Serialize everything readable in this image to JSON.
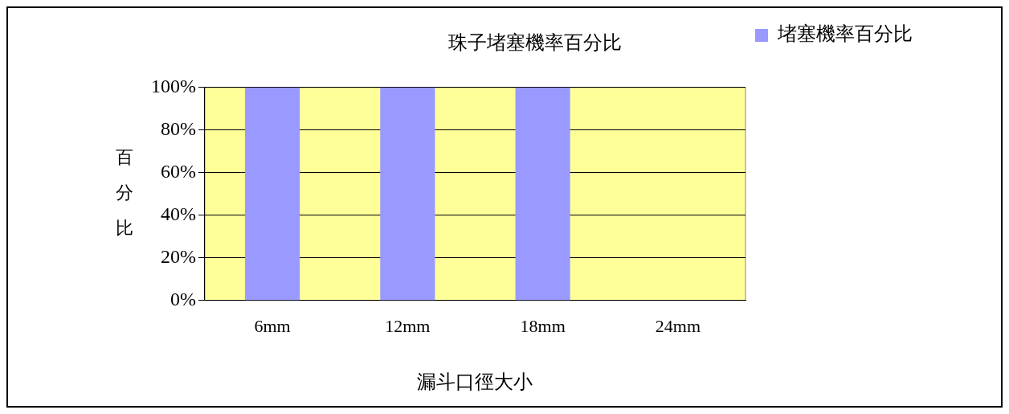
{
  "chart_data": {
    "type": "bar",
    "title": "珠子堵塞機率百分比",
    "xlabel": "漏斗口徑大小",
    "ylabel": "百分比",
    "categories": [
      "6mm",
      "12mm",
      "18mm",
      "24mm"
    ],
    "series": [
      {
        "name": "堵塞機率百分比",
        "color": "#9999ff",
        "values": [
          100,
          100,
          100,
          0
        ]
      }
    ],
    "ylim": [
      0,
      100
    ],
    "yticks": [
      {
        "value": 0,
        "label": "0%"
      },
      {
        "value": 20,
        "label": "20%"
      },
      {
        "value": 40,
        "label": "40%"
      },
      {
        "value": 60,
        "label": "60%"
      },
      {
        "value": 80,
        "label": "80%"
      },
      {
        "value": 100,
        "label": "100%"
      }
    ],
    "grid": "y",
    "legend": "right"
  }
}
